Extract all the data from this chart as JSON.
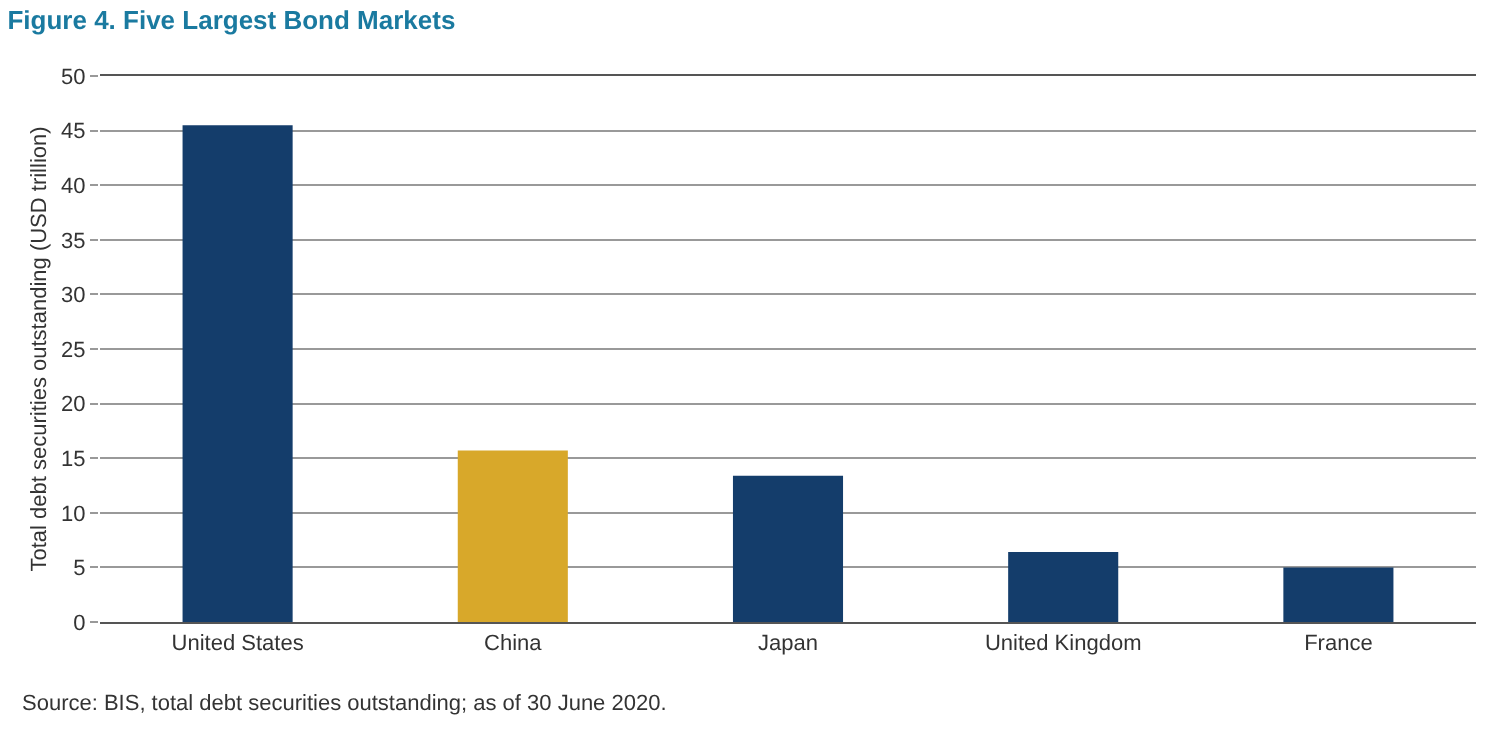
{
  "chart_data": {
    "type": "bar",
    "title": "Figure 4. Five Largest Bond Markets",
    "ylabel": "Total debt securities outstanding (USD trillion)",
    "categories": [
      "United States",
      "China",
      "Japan",
      "United Kingdom",
      "France"
    ],
    "values": [
      45.5,
      15.7,
      13.4,
      6.4,
      5.0
    ],
    "colors": [
      "#143d6b",
      "#d8a82a",
      "#143d6b",
      "#143d6b",
      "#143d6b"
    ],
    "ylim": [
      0,
      50
    ],
    "yticks": [
      0,
      5,
      10,
      15,
      20,
      25,
      30,
      35,
      40,
      45,
      50
    ],
    "grid": "y",
    "annotations": [
      "Source: BIS, total debt securities outstanding; as of 30 June 2020."
    ]
  }
}
